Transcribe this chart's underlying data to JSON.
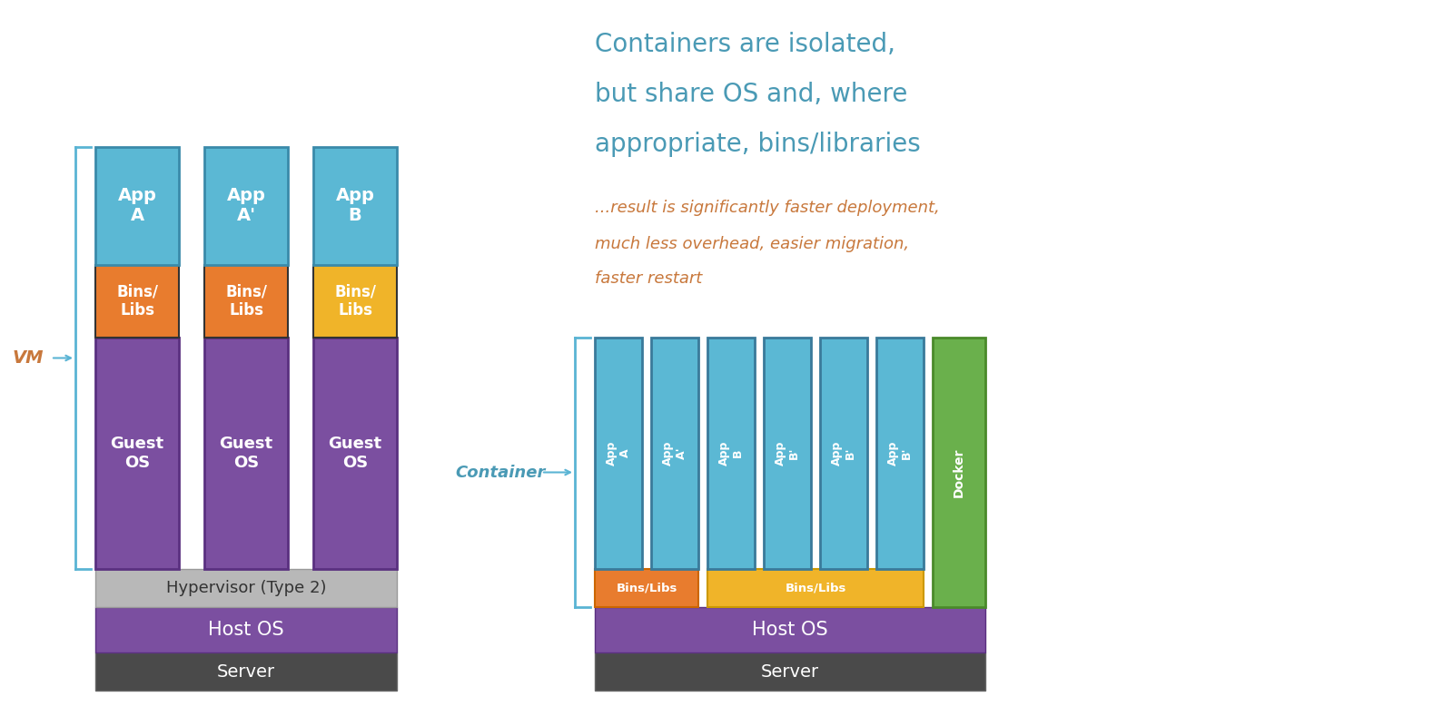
{
  "bg_color": "#ffffff",
  "text_color_white": "#ffffff",
  "text_color_dark": "#333333",
  "text_color_teal": "#4a9ab5",
  "text_color_orange": "#c8783c",
  "text_color_gray": "#666666",
  "color_app": "#5bb8d4",
  "color_bins_orange": "#e87c2e",
  "color_bins_yellow": "#f0b429",
  "color_guest_os": "#7b4fa0",
  "color_hypervisor": "#b8b8b8",
  "color_host_os": "#7b4fa0",
  "color_server": "#4a4a4a",
  "color_docker": "#6ab04c",
  "color_border_dark": "#4a4a6a",
  "color_bracket": "#5ab4d4",
  "vm_title": "VM",
  "vm_cols": [
    {
      "app": "App\nA",
      "bins": "Bins/\nLibs",
      "guest": "Guest\nOS"
    },
    {
      "app": "App\nA'",
      "bins": "Bins/\nLibs",
      "guest": "Guest\nOS"
    },
    {
      "app": "App\nB",
      "bins": "Bins/\nLibs",
      "guest": "Guest\nOS"
    }
  ],
  "vm_bins_colors": [
    "#e87c2e",
    "#e87c2e",
    "#f0b429"
  ],
  "hypervisor_label": "Hypervisor (Type 2)",
  "host_os_label_vm": "Host OS",
  "server_label_vm": "Server",
  "host_os_label_container": "Host OS",
  "server_label_container": "Server",
  "container_title": "Container",
  "docker_label": "Docker",
  "cont_app_labels": [
    "App\nA",
    "App\nA'",
    "App\nB",
    "App\nB'",
    "App\nB'",
    "App\nB'"
  ],
  "main_text_line1": "Containers are isolated,",
  "main_text_line2": "but share OS and, where",
  "main_text_line3": "appropriate, bins/libraries",
  "sub_text_line1": "...result is significantly faster deployment,",
  "sub_text_line2": "much less overhead, easier migration,",
  "sub_text_line3": "faster restart"
}
